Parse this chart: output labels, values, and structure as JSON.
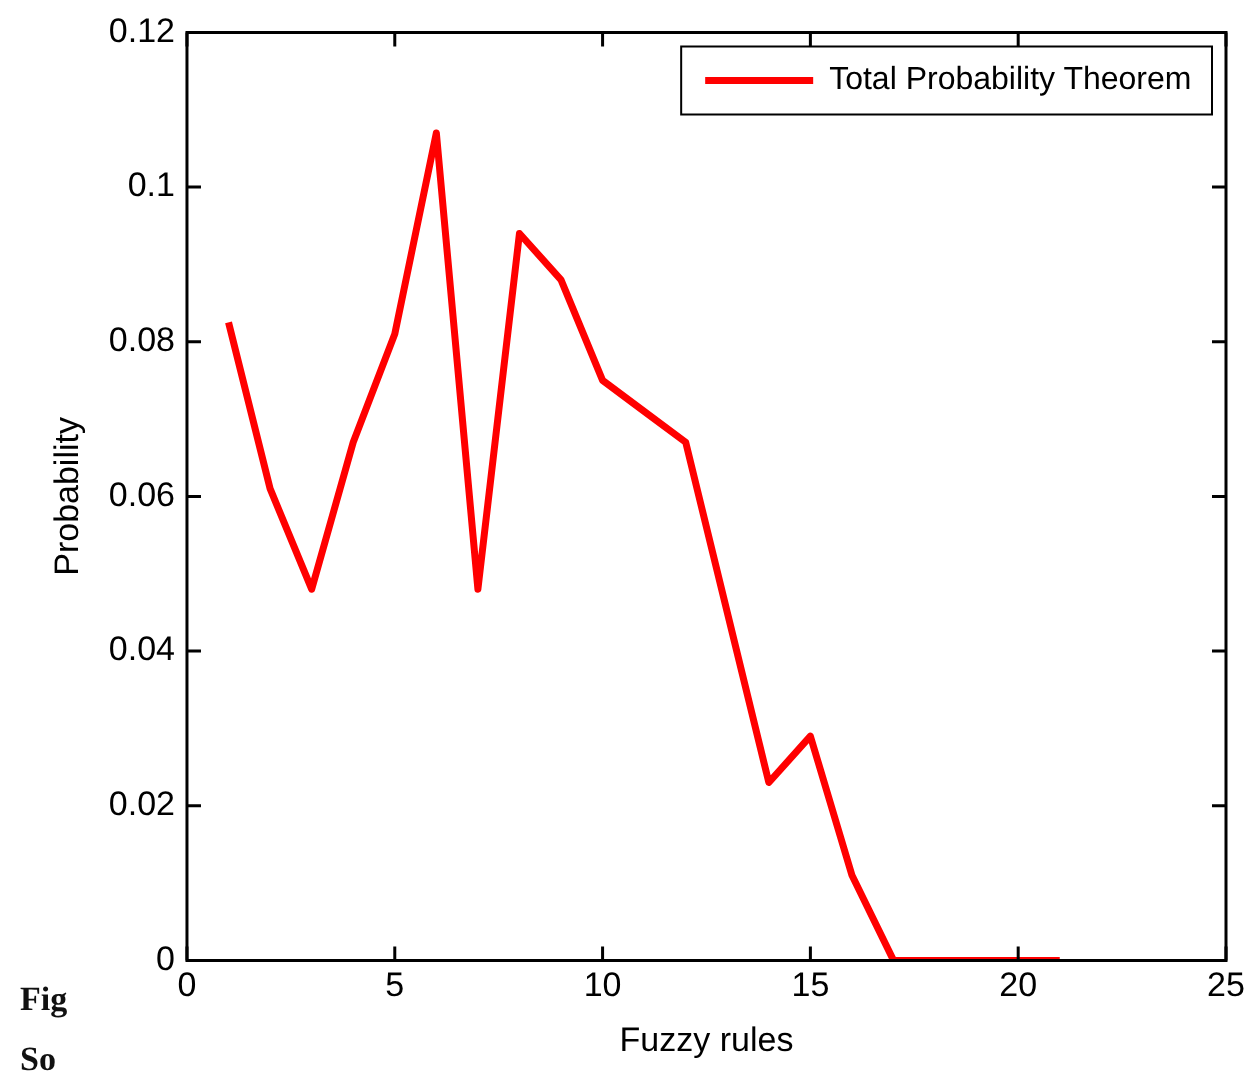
{
  "chart_data": {
    "type": "line",
    "xlabel": "Fuzzy rules",
    "ylabel": "Probability",
    "x": [
      1,
      2,
      3,
      4,
      5,
      6,
      7,
      8,
      9,
      10,
      11,
      12,
      13,
      14,
      15,
      16,
      17,
      18,
      19,
      20,
      21
    ],
    "series": [
      {
        "name": "Total Probability Theorem",
        "color": "#ff0000",
        "values": [
          0.0825,
          0.061,
          0.048,
          0.067,
          0.081,
          0.107,
          0.048,
          0.094,
          0.088,
          0.075,
          0.071,
          0.067,
          0.045,
          0.023,
          0.029,
          0.011,
          0,
          0,
          0,
          0,
          0
        ]
      }
    ],
    "xlim": [
      0,
      25
    ],
    "xticks": [
      0,
      5,
      10,
      15,
      20,
      25
    ],
    "ylim": [
      0,
      0.12
    ],
    "yticks": [
      0,
      0.02,
      0.04,
      0.06,
      0.08,
      0.1,
      0.12
    ],
    "grid": false,
    "legend": "top right",
    "marker": "none",
    "line_style": "solid",
    "annotations": [
      "Fig",
      "So"
    ]
  }
}
